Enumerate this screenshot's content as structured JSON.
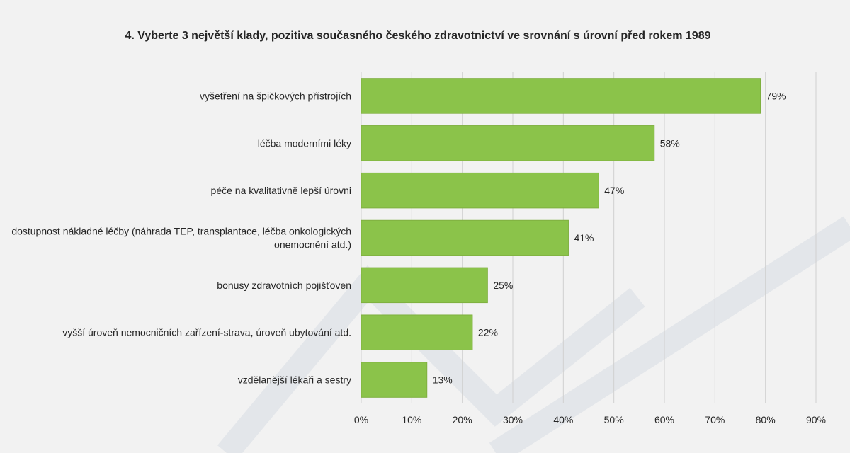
{
  "chart_data": {
    "type": "bar",
    "orientation": "horizontal",
    "title": "4. Vyberte 3 největší klady, pozitiva současného českého zdravotnictví ve srovnání s úrovní před rokem 1989",
    "categories": [
      [
        "vyšetření na špičkových přístrojích"
      ],
      [
        "léčba moderními léky"
      ],
      [
        "péče na kvalitativně lepší úrovni"
      ],
      [
        "dostupnost nákladné léčby (náhrada TEP, transplantace, léčba onkologických",
        "onemocnění atd.)"
      ],
      [
        "bonusy zdravotních pojišťoven"
      ],
      [
        "vyšší úroveň nemocničních zařízení-strava, úroveň ubytování atd."
      ],
      [
        "vzdělanější lékaři a sestry"
      ]
    ],
    "values": [
      79,
      58,
      47,
      41,
      25,
      22,
      13
    ],
    "value_labels": [
      "79%",
      "58%",
      "47%",
      "41%",
      "25%",
      "22%",
      "13%"
    ],
    "xlim": [
      0,
      90
    ],
    "xticks": [
      0,
      10,
      20,
      30,
      40,
      50,
      60,
      70,
      80,
      90
    ],
    "xtick_labels": [
      "0%",
      "10%",
      "20%",
      "30%",
      "40%",
      "50%",
      "60%",
      "70%",
      "80%",
      "90%"
    ],
    "xlabel": "",
    "ylabel": "",
    "gridlines": "vertical",
    "legend": "none",
    "colors": {
      "bar": "#8bc34a",
      "bar_border": "#7fb03f",
      "grid": "#d0d0d0",
      "text": "#262626"
    }
  }
}
